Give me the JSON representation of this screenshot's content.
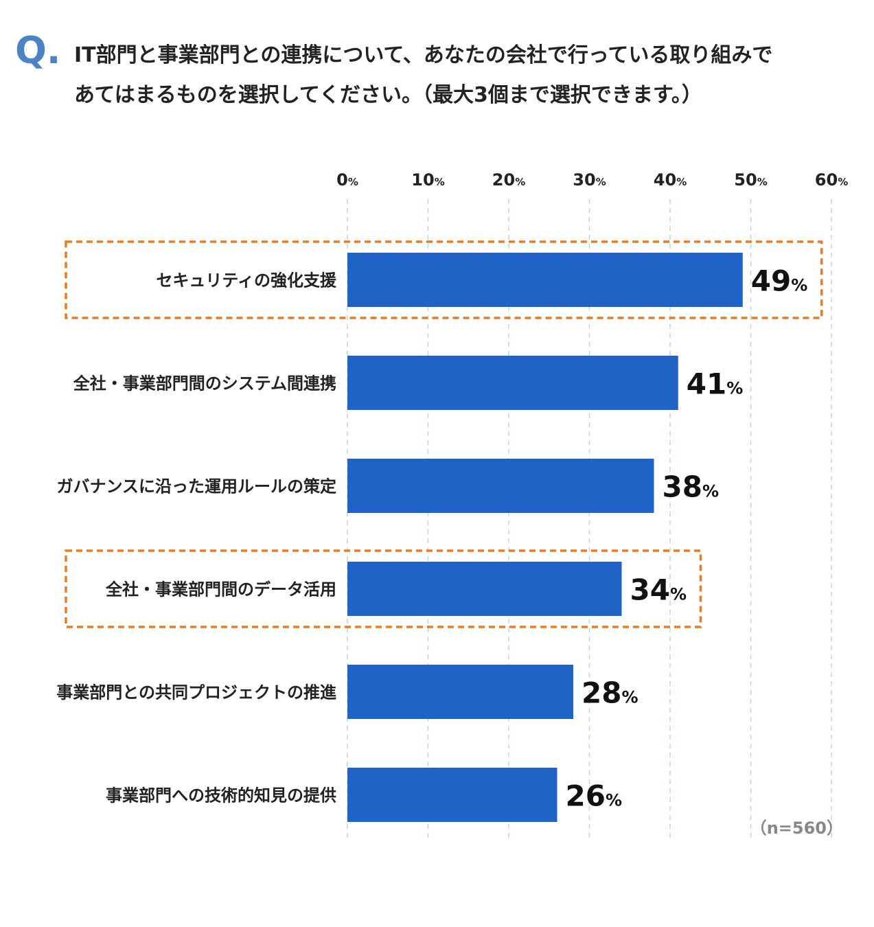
{
  "question": {
    "mark": "Q.",
    "line1": "IT部門と事業部門との連携について、あなたの会社で行っている取り組みで",
    "line2": "あてはまるものを選択してください。（最大3個まで選択できます。）"
  },
  "chart_data": {
    "type": "bar",
    "orientation": "horizontal",
    "categories": [
      "セキュリティの強化支援",
      "全社・事業部門間のシステム間連携",
      "ガバナンスに沿った運用ルールの策定",
      "全社・事業部門間のデータ活用",
      "事業部門との共同プロジェクトの推進",
      "事業部門への技術的知見の提供"
    ],
    "values": [
      49,
      41,
      38,
      34,
      28,
      26
    ],
    "highlighted": [
      0,
      3
    ],
    "value_suffix": "%",
    "xlim": [
      0,
      60
    ],
    "xticks": [
      0,
      10,
      20,
      30,
      40,
      50,
      60
    ],
    "tick_suffix": "%",
    "grid": true,
    "colors": {
      "bar": "#2063c6",
      "highlight": "#ee7a1f",
      "grid": "#b9dcd8"
    },
    "note": "（n=560）"
  }
}
